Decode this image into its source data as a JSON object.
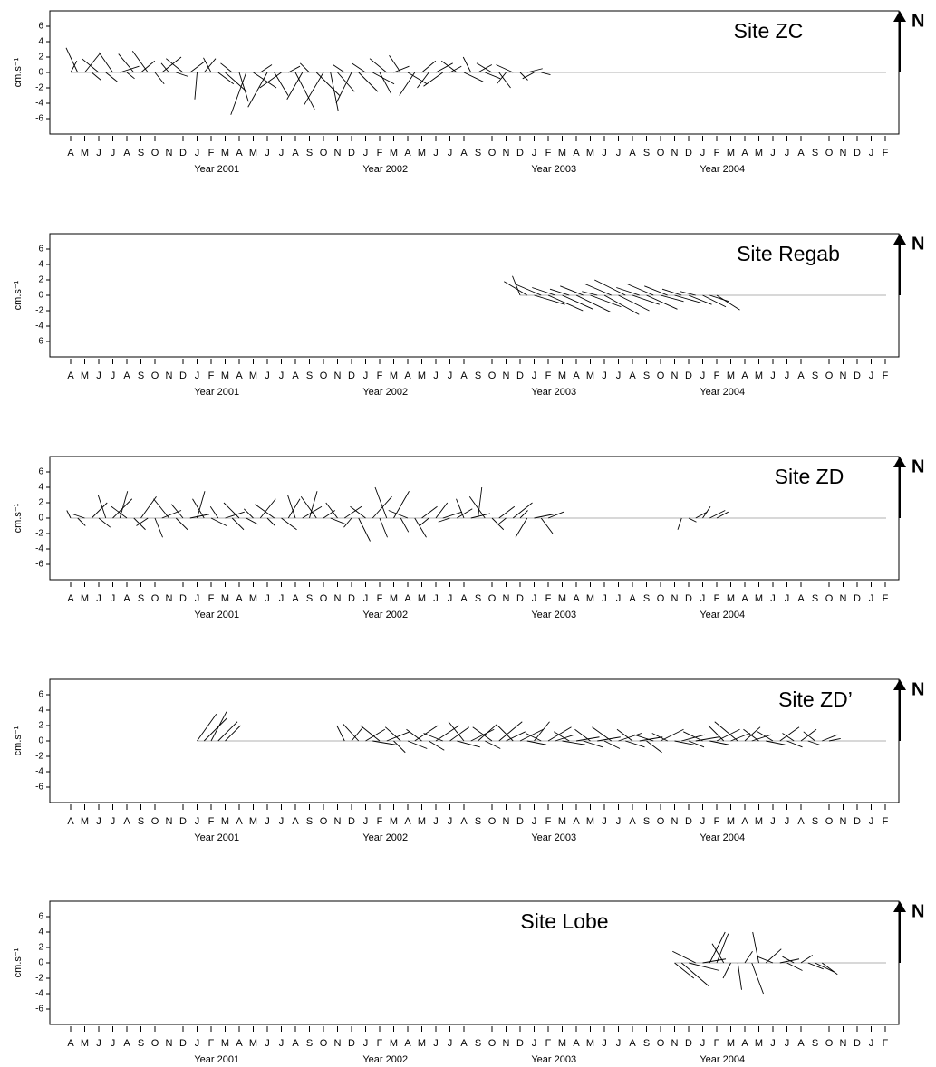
{
  "time_axis": {
    "xlim": [
      -0.5,
      58.5
    ],
    "xticks": [
      {
        "value": 0,
        "label": "A"
      },
      {
        "value": 1,
        "label": "M"
      },
      {
        "value": 2,
        "label": "J"
      },
      {
        "value": 3,
        "label": "J"
      },
      {
        "value": 4,
        "label": "A"
      },
      {
        "value": 5,
        "label": "S"
      },
      {
        "value": 6,
        "label": "O"
      },
      {
        "value": 7,
        "label": "N"
      },
      {
        "value": 8,
        "label": "D"
      },
      {
        "value": 9,
        "label": "J"
      },
      {
        "value": 10,
        "label": "F"
      },
      {
        "value": 11,
        "label": "M"
      },
      {
        "value": 12,
        "label": "A"
      },
      {
        "value": 13,
        "label": "M"
      },
      {
        "value": 14,
        "label": "J"
      },
      {
        "value": 15,
        "label": "J"
      },
      {
        "value": 16,
        "label": "A"
      },
      {
        "value": 17,
        "label": "S"
      },
      {
        "value": 18,
        "label": "O"
      },
      {
        "value": 19,
        "label": "N"
      },
      {
        "value": 20,
        "label": "D"
      },
      {
        "value": 21,
        "label": "J"
      },
      {
        "value": 22,
        "label": "F"
      },
      {
        "value": 23,
        "label": "M"
      },
      {
        "value": 24,
        "label": "A"
      },
      {
        "value": 25,
        "label": "M"
      },
      {
        "value": 26,
        "label": "J"
      },
      {
        "value": 27,
        "label": "J"
      },
      {
        "value": 28,
        "label": "A"
      },
      {
        "value": 29,
        "label": "S"
      },
      {
        "value": 30,
        "label": "O"
      },
      {
        "value": 31,
        "label": "N"
      },
      {
        "value": 32,
        "label": "D"
      },
      {
        "value": 33,
        "label": "J"
      },
      {
        "value": 34,
        "label": "F"
      },
      {
        "value": 35,
        "label": "M"
      },
      {
        "value": 36,
        "label": "A"
      },
      {
        "value": 37,
        "label": "M"
      },
      {
        "value": 38,
        "label": "J"
      },
      {
        "value": 39,
        "label": "J"
      },
      {
        "value": 40,
        "label": "A"
      },
      {
        "value": 41,
        "label": "S"
      },
      {
        "value": 42,
        "label": "O"
      },
      {
        "value": 43,
        "label": "N"
      },
      {
        "value": 44,
        "label": "D"
      },
      {
        "value": 45,
        "label": "J"
      },
      {
        "value": 46,
        "label": "F"
      },
      {
        "value": 47,
        "label": "M"
      },
      {
        "value": 48,
        "label": "A"
      },
      {
        "value": 49,
        "label": "M"
      },
      {
        "value": 50,
        "label": "J"
      },
      {
        "value": 51,
        "label": "J"
      },
      {
        "value": 52,
        "label": "A"
      },
      {
        "value": 53,
        "label": "S"
      },
      {
        "value": 54,
        "label": "O"
      },
      {
        "value": 55,
        "label": "N"
      },
      {
        "value": 56,
        "label": "D"
      },
      {
        "value": 57,
        "label": "J"
      },
      {
        "value": 58,
        "label": "F"
      }
    ],
    "year_labels": [
      {
        "text": "Year 2001",
        "x": 10.4
      },
      {
        "text": "Year 2002",
        "x": 22.4
      },
      {
        "text": "Year 2003",
        "x": 34.4
      },
      {
        "text": "Year 2004",
        "x": 46.4
      }
    ]
  },
  "chart_data": [
    {
      "type": "stick",
      "title": "Site ZC",
      "ylabel": "cm.s⁻¹",
      "north_label": "N",
      "ylim": [
        -8,
        8
      ],
      "yticks": [
        -6,
        -4,
        -2,
        0,
        2,
        4,
        6
      ],
      "color": "#000000",
      "x": [
        0,
        0.5,
        1,
        1.5,
        2,
        2.5,
        3,
        3.5,
        4,
        4.5,
        5,
        5.5,
        6,
        6.5,
        7,
        7.5,
        8,
        8.5,
        9,
        9.5,
        10,
        10.5,
        11,
        11.5,
        12,
        12.5,
        13,
        13.5,
        14,
        14.5,
        15,
        15.5,
        16,
        16.5,
        17,
        17.5,
        18,
        18.5,
        19,
        19.5,
        20,
        20.5,
        21,
        21.5,
        22,
        22.5,
        23,
        23.5,
        24,
        24.5,
        25,
        25.5,
        26,
        26.5,
        27,
        27.5,
        28,
        28.5,
        29,
        29.5,
        30,
        30.5,
        31,
        31.5,
        32,
        32.5,
        33,
        33.5
      ],
      "u": [
        0.8,
        -1.5,
        2.0,
        1.2,
        -2.2,
        1.5,
        -1.8,
        2.5,
        1.0,
        -2.0,
        1.8,
        -2.0,
        1.2,
        2.5,
        -1.0,
        1.5,
        -2.2,
        2.0,
        -0.3,
        1.5,
        -1.0,
        2.0,
        2.8,
        -1.5,
        1.2,
        -2.0,
        3.0,
        1.5,
        -2.5,
        1.8,
        -2.8,
        1.5,
        2.5,
        -2.0,
        -1.2,
        3.0,
        -2.5,
        1.0,
        2.2,
        -1.5,
        -2.0,
        2.5,
        -1.8,
        2.8,
        1.5,
        -2.2,
        2.0,
        -1.5,
        2.5,
        -2.0,
        1.8,
        -1.5,
        2.2,
        -2.5,
        1.5,
        -2.0,
        2.5,
        -1.0,
        1.8,
        2.0,
        -2.0,
        1.5,
        -1.2,
        -2.2,
        1.0,
        2.0,
        -1.5,
        1.2
      ],
      "v": [
        1.5,
        3.2,
        2.5,
        -1.0,
        1.8,
        -1.2,
        2.6,
        0.8,
        -0.8,
        2.4,
        1.5,
        2.8,
        -1.5,
        2.0,
        1.2,
        -0.5,
        1.8,
        1.5,
        -3.5,
        1.8,
        1.9,
        -1.5,
        -2.5,
        1.2,
        -3.8,
        -5.5,
        -2.0,
        1.0,
        -4.5,
        -3.0,
        -2.0,
        0.8,
        -4.8,
        -3.5,
        1.2,
        -3.0,
        -4.2,
        -5.0,
        -2.5,
        1.0,
        -4.0,
        -2.5,
        1.2,
        -1.5,
        -2.8,
        1.8,
        0.8,
        2.2,
        -1.5,
        -3.0,
        1.5,
        -2.0,
        1.2,
        -1.8,
        0.8,
        1.5,
        -1.2,
        2.0,
        1.0,
        -0.8,
        1.2,
        -2.0,
        -1.5,
        1.0,
        -1.0,
        0.5,
        -0.8,
        -0.3
      ]
    },
    {
      "type": "stick",
      "title": "Site Regab",
      "ylabel": "cm.s⁻¹",
      "north_label": "N",
      "ylim": [
        -8,
        8
      ],
      "yticks": [
        -6,
        -4,
        -2,
        0,
        2,
        4,
        6
      ],
      "color": "#000000",
      "x": [
        32,
        32.5,
        33,
        33.5,
        34,
        34.5,
        35,
        35.5,
        36,
        36.5,
        37,
        37.5,
        38,
        38.5,
        39,
        39.5,
        40,
        40.5,
        41,
        41.5,
        42,
        42.5,
        43,
        43.5,
        44,
        44.5,
        45,
        45.5,
        46
      ],
      "u": [
        -1.0,
        -3.0,
        4.0,
        -3.5,
        4.5,
        -3.0,
        4.0,
        -2.5,
        4.5,
        -3.0,
        4.0,
        -2.0,
        4.5,
        -3.5,
        4.0,
        -4.0,
        3.5,
        -3.0,
        4.0,
        -3.5,
        3.0,
        -3.0,
        3.5,
        -2.5,
        3.0,
        -2.0,
        3.0,
        2.5,
        3.0
      ],
      "v": [
        2.5,
        1.8,
        -1.2,
        1.5,
        -2.0,
        1.0,
        -1.8,
        0.8,
        -2.2,
        1.2,
        -1.5,
        0.5,
        -2.5,
        1.5,
        -2.0,
        2.0,
        -1.2,
        1.0,
        -1.8,
        1.5,
        -0.8,
        1.2,
        -1.0,
        0.8,
        -1.2,
        0.5,
        -1.5,
        -0.8,
        -1.9
      ]
    },
    {
      "type": "stick",
      "title": "Site ZD",
      "ylabel": "cm.s⁻¹",
      "north_label": "N",
      "ylim": [
        -8,
        8
      ],
      "yticks": [
        -6,
        -4,
        -2,
        0,
        2,
        4,
        6
      ],
      "color": "#000000",
      "x": [
        0,
        0.5,
        1,
        1.5,
        2,
        2.5,
        3,
        3.5,
        4,
        4.5,
        5,
        5.5,
        6,
        6.5,
        7,
        7.5,
        8,
        8.5,
        9,
        9.5,
        10,
        10.5,
        11,
        11.5,
        12,
        12.5,
        13,
        13.5,
        14,
        14.5,
        15,
        15.5,
        16,
        16.5,
        17,
        17.5,
        18,
        18.5,
        19,
        19.5,
        20,
        20.5,
        21,
        21.5,
        22,
        22.5,
        23,
        23.5,
        24,
        24.5,
        25,
        25.5,
        26,
        26.5,
        27,
        27.5,
        28,
        28.5,
        29,
        29.5,
        30,
        30.5,
        31,
        31.5,
        32,
        32.5,
        33,
        33.5,
        34,
        43.5,
        44,
        44.5,
        45,
        45.5,
        46
      ],
      "u": [
        -0.5,
        1.0,
        -1.5,
        2.0,
        1.5,
        -1.0,
        2.5,
        1.0,
        -2.0,
        1.5,
        2.0,
        -1.5,
        1.0,
        2.5,
        -2.0,
        1.5,
        -1.5,
        2.5,
        1.0,
        -1.5,
        2.0,
        -1.0,
        2.5,
        1.5,
        -2.0,
        1.5,
        -1.2,
        2.0,
        1.0,
        -2.5,
        2.0,
        1.5,
        -1.0,
        2.5,
        1.0,
        -2.0,
        1.5,
        2.0,
        -1.5,
        2.2,
        -1.0,
        1.5,
        -2.0,
        2.5,
        1.0,
        -1.5,
        2.0,
        1.0,
        -2.5,
        1.5,
        2.0,
        -1.2,
        1.5,
        2.5,
        -1.5,
        2.0,
        -1.0,
        2.5,
        0.5,
        -2.0,
        1.5,
        2.0,
        -1.0,
        2.5,
        1.0,
        -1.5,
        2.5,
        1.5,
        2.0,
        -0.5,
        1.0,
        1.5,
        1.0,
        2.0,
        1.5
      ],
      "v": [
        1.0,
        -1.0,
        0.5,
        2.0,
        -1.2,
        3.0,
        2.5,
        3.5,
        1.5,
        -1.5,
        2.8,
        -1.0,
        -2.5,
        1.0,
        2.5,
        -1.5,
        1.8,
        0.5,
        3.5,
        2.5,
        -1.0,
        1.5,
        0.8,
        -1.5,
        2.0,
        -0.8,
        1.2,
        2.5,
        -1.0,
        1.8,
        -1.5,
        2.5,
        3.0,
        1.5,
        3.5,
        2.8,
        1.0,
        -0.8,
        2.0,
        1.5,
        -1.2,
        -3.0,
        1.5,
        2.8,
        -2.5,
        4.0,
        3.5,
        -1.8,
        1.0,
        -2.5,
        1.5,
        -1.0,
        2.0,
        0.8,
        -0.5,
        1.2,
        2.5,
        0.6,
        4.0,
        2.8,
        -1.5,
        1.5,
        -0.8,
        2.0,
        1.0,
        -2.5,
        0.5,
        -2.0,
        0.8,
        -1.5,
        -0.5,
        0.8,
        1.5,
        1.0,
        0.8
      ]
    },
    {
      "type": "stick",
      "title": "Site ZD’",
      "ylabel": "cm.s⁻¹",
      "north_label": "N",
      "ylim": [
        -8,
        8
      ],
      "yticks": [
        -6,
        -4,
        -2,
        0,
        2,
        4,
        6
      ],
      "color": "#000000",
      "x": [
        9,
        9.5,
        10,
        10.5,
        11,
        19.5,
        20,
        20.5,
        21,
        21.5,
        22,
        22.5,
        23,
        23.5,
        24,
        24.5,
        25,
        25.5,
        26,
        26.5,
        27,
        27.5,
        28,
        28.5,
        29,
        29.5,
        30,
        30.5,
        31,
        31.5,
        32,
        32.5,
        33,
        33.5,
        34,
        34.5,
        35,
        35.5,
        36,
        36.5,
        37,
        37.5,
        38,
        38.5,
        39,
        39.5,
        40,
        40.5,
        41,
        41.5,
        42,
        42.5,
        43,
        43.5,
        44,
        44.5,
        45,
        45.5,
        46,
        46.5,
        47,
        47.5,
        48,
        48.5,
        49,
        49.5,
        50,
        50.5,
        51,
        51.5,
        52,
        52.5,
        53,
        53.5,
        54
      ],
      "u": [
        2.5,
        3.0,
        2.0,
        2.5,
        2.0,
        -1.0,
        1.5,
        -2.0,
        2.5,
        3.0,
        -2.5,
        3.0,
        1.5,
        -2.0,
        2.5,
        3.0,
        -2.0,
        2.0,
        3.0,
        -2.5,
        2.5,
        3.0,
        -2.0,
        3.0,
        2.5,
        2.0,
        -2.5,
        3.0,
        2.5,
        -2.0,
        3.0,
        2.5,
        2.0,
        -2.0,
        3.0,
        2.5,
        3.0,
        -2.0,
        3.0,
        2.5,
        -2.0,
        3.0,
        2.0,
        -2.5,
        3.0,
        2.5,
        -2.0,
        3.0,
        2.0,
        -2.5,
        3.0,
        -2.0,
        2.5,
        3.0,
        2.0,
        3.0,
        -2.5,
        2.5,
        3.0,
        -2.0,
        2.5,
        -3.0,
        2.0,
        2.5,
        -2.0,
        2.5,
        -2.0,
        2.5,
        2.0,
        -1.5,
        2.0,
        1.5,
        -1.5,
        2.0,
        1.5
      ],
      "v": [
        3.5,
        3.0,
        3.8,
        2.5,
        2.0,
        2.0,
        1.8,
        2.2,
        1.5,
        -0.5,
        2.0,
        1.2,
        -1.5,
        1.8,
        -1.0,
        2.0,
        1.5,
        -1.2,
        2.0,
        1.0,
        1.8,
        -0.8,
        2.5,
        1.5,
        2.2,
        -1.0,
        1.8,
        2.5,
        1.2,
        2.0,
        1.5,
        -0.5,
        2.5,
        1.0,
        1.8,
        0.8,
        -0.5,
        1.2,
        0.5,
        -0.8,
        1.5,
        0.5,
        -1.0,
        1.8,
        1.0,
        -0.8,
        1.5,
        0.5,
        -1.5,
        0.8,
        1.5,
        1.0,
        -0.5,
        0.8,
        -0.8,
        0.5,
        1.2,
        -0.5,
        1.5,
        2.0,
        1.0,
        2.5,
        1.8,
        0.8,
        1.5,
        -0.5,
        1.2,
        1.8,
        -0.8,
        1.0,
        1.5,
        -0.5,
        1.2,
        0.8,
        0.3
      ]
    },
    {
      "type": "stick",
      "title": "Site Lobe",
      "ylabel": "cm.s⁻¹",
      "north_label": "N",
      "ylim": [
        -8,
        8
      ],
      "yticks": [
        -6,
        -4,
        -2,
        0,
        2,
        4,
        6
      ],
      "color": "#000000",
      "x": [
        43,
        43.5,
        44,
        44.5,
        45,
        45.5,
        46,
        46.5,
        47,
        47.5,
        48,
        48.5,
        49,
        49.5,
        50,
        50.5,
        51,
        51.5,
        52,
        52.5,
        53,
        53.5
      ],
      "u": [
        2.5,
        3.5,
        4.0,
        -3.0,
        3.0,
        2.0,
        1.5,
        -1.5,
        -1.0,
        0.5,
        1.0,
        1.5,
        -0.8,
        2.0,
        -2.0,
        2.5,
        2.0,
        -1.5,
        1.5,
        2.0,
        2.5,
        2.0
      ],
      "v": [
        -2.0,
        -3.0,
        -1.0,
        1.5,
        0.5,
        4.0,
        3.8,
        2.5,
        -2.0,
        -3.5,
        1.5,
        -4.0,
        4.0,
        1.8,
        0.8,
        0.5,
        -1.0,
        0.8,
        1.0,
        -0.8,
        -1.2,
        -1.5
      ]
    }
  ]
}
